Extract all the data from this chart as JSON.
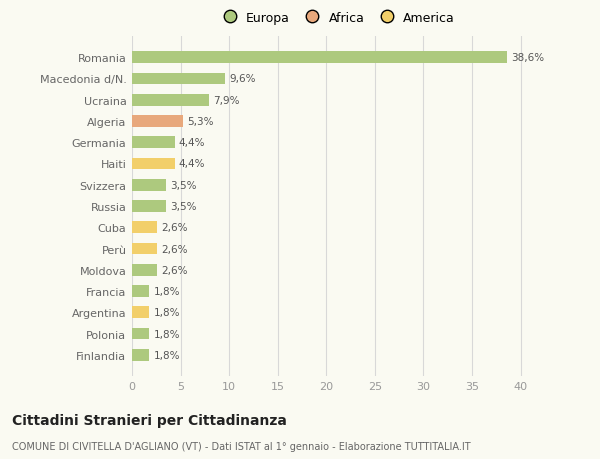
{
  "countries": [
    "Romania",
    "Macedonia d/N.",
    "Ucraina",
    "Algeria",
    "Germania",
    "Haiti",
    "Svizzera",
    "Russia",
    "Cuba",
    "Perù",
    "Moldova",
    "Francia",
    "Argentina",
    "Polonia",
    "Finlandia"
  ],
  "values": [
    38.6,
    9.6,
    7.9,
    5.3,
    4.4,
    4.4,
    3.5,
    3.5,
    2.6,
    2.6,
    2.6,
    1.8,
    1.8,
    1.8,
    1.8
  ],
  "labels": [
    "38,6%",
    "9,6%",
    "7,9%",
    "5,3%",
    "4,4%",
    "4,4%",
    "3,5%",
    "3,5%",
    "2,6%",
    "2,6%",
    "2,6%",
    "1,8%",
    "1,8%",
    "1,8%",
    "1,8%"
  ],
  "continents": [
    "Europa",
    "Europa",
    "Europa",
    "Africa",
    "Europa",
    "America",
    "Europa",
    "Europa",
    "America",
    "America",
    "Europa",
    "Europa",
    "America",
    "Europa",
    "Europa"
  ],
  "colors": {
    "Europa": "#adc97e",
    "Africa": "#e8a87c",
    "America": "#f2cf6a"
  },
  "background_color": "#fafaf2",
  "grid_color": "#d8d8d8",
  "title": "Cittadini Stranieri per Cittadinanza",
  "subtitle": "COMUNE DI CIVITELLA D'AGLIANO (VT) - Dati ISTAT al 1° gennaio - Elaborazione TUTTITALIA.IT",
  "xlim": [
    0,
    42
  ],
  "xticks": [
    0,
    5,
    10,
    15,
    20,
    25,
    30,
    35,
    40
  ],
  "bar_height": 0.55,
  "label_fontsize": 7.5,
  "ytick_fontsize": 8,
  "xtick_fontsize": 8,
  "title_fontsize": 10,
  "subtitle_fontsize": 7
}
